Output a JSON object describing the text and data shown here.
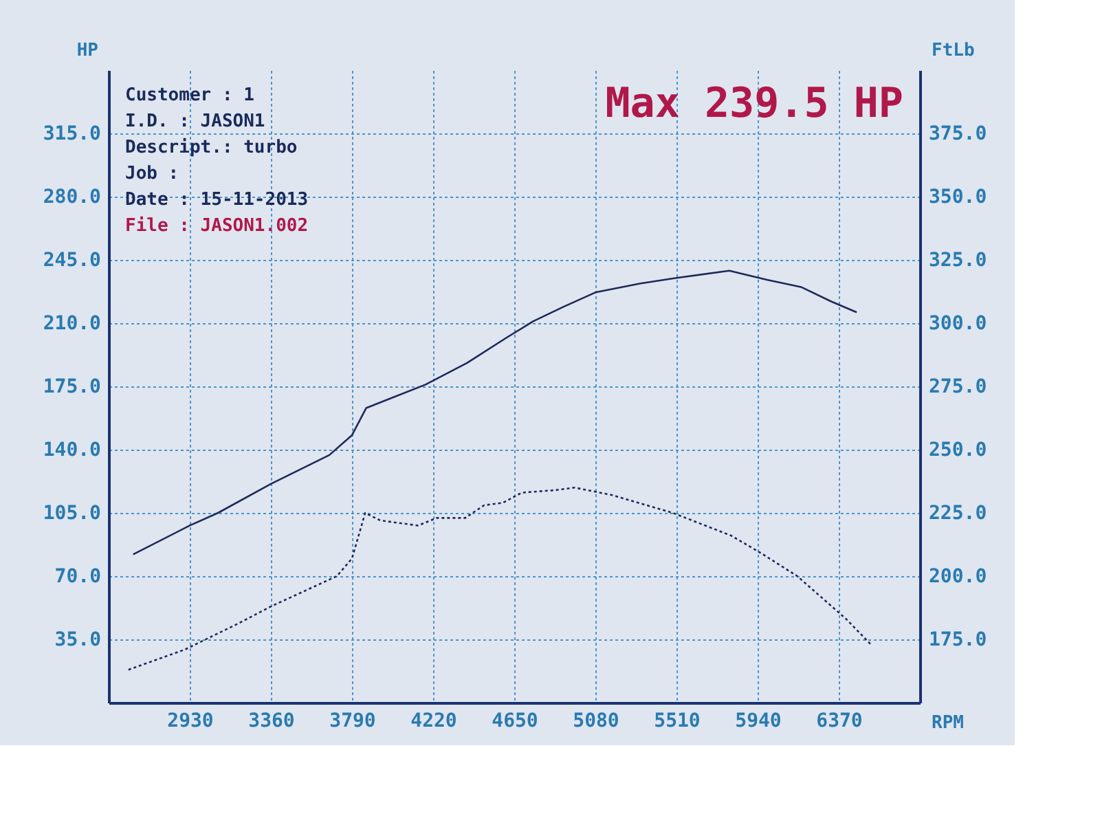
{
  "chart_data": {
    "type": "line",
    "xlabel": "RPM",
    "ylabel": "HP",
    "y2label": "FtLb",
    "xlim": [
      2500,
      6800
    ],
    "xticks": [
      2930,
      3360,
      3790,
      4220,
      4650,
      5080,
      5510,
      5940,
      6370
    ],
    "ylim": [
      0,
      350
    ],
    "yticks": [
      {
        "value": 35,
        "label": "35.0"
      },
      {
        "value": 70,
        "label": "70.0"
      },
      {
        "value": 105,
        "label": "105.0"
      },
      {
        "value": 140,
        "label": "140.0"
      },
      {
        "value": 175,
        "label": "175.0"
      },
      {
        "value": 210,
        "label": "210.0"
      },
      {
        "value": 245,
        "label": "245.0"
      },
      {
        "value": 280,
        "label": "280.0"
      },
      {
        "value": 315,
        "label": "315.0"
      }
    ],
    "y2lim": [
      150,
      400
    ],
    "y2ticks": [
      {
        "value": 175,
        "label": "175.0"
      },
      {
        "value": 200,
        "label": "200.0"
      },
      {
        "value": 225,
        "label": "225.0"
      },
      {
        "value": 250,
        "label": "250.0"
      },
      {
        "value": 275,
        "label": "275.0"
      },
      {
        "value": 300,
        "label": "300.0"
      },
      {
        "value": 325,
        "label": "325.0"
      },
      {
        "value": 350,
        "label": "350.0"
      },
      {
        "value": 375,
        "label": "375.0"
      }
    ],
    "grid": true,
    "series": [
      {
        "color": "#1f2a5a",
        "line_style": "solid",
        "x": [
          2630,
          2930,
          3080,
          3360,
          3670,
          3790,
          3865,
          4010,
          4180,
          4400,
          4610,
          4750,
          4910,
          5080,
          5320,
          5510,
          5790,
          5990,
          6170,
          6330,
          6465
        ],
        "values": [
          82,
          98,
          105,
          121,
          137,
          148,
          163,
          169,
          176,
          188,
          202,
          211,
          219,
          227,
          232,
          235,
          239,
          234,
          230,
          222,
          216
        ]
      },
      {
        "color": "#1f2a5a",
        "line_style": "dotted",
        "axis": "y2",
        "x": [
          2605,
          2905,
          3180,
          3360,
          3710,
          3790,
          3860,
          3940,
          4140,
          4240,
          4390,
          4490,
          4590,
          4690,
          4870,
          4970,
          5170,
          5490,
          5800,
          5960,
          6150,
          6410,
          6540
        ],
        "values": [
          163,
          171,
          181,
          188,
          200,
          207,
          225,
          222,
          220,
          223,
          223,
          228,
          229,
          233,
          234,
          235,
          232,
          225,
          216,
          209,
          200,
          183,
          173
        ]
      }
    ],
    "annotations": [
      "Max 239.5 HP",
      "Customer : 1",
      "I.D.     : JASON1",
      "Descript.: turbo",
      "Job      :",
      "Date     : 15-11-2013",
      "File     : JASON1.002"
    ]
  }
}
